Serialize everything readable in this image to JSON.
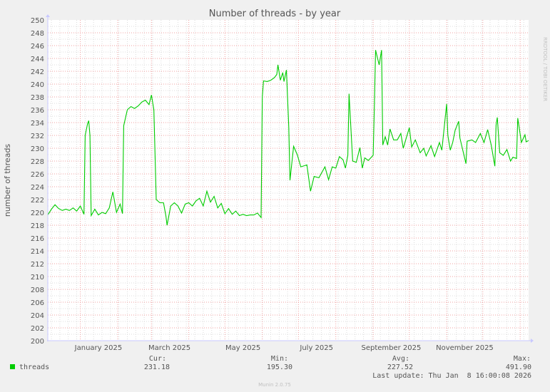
{
  "chart_data": {
    "type": "line",
    "title": "Number of threads - by year",
    "ylabel": "number of threads",
    "xlabel": "",
    "ylim": [
      200,
      250
    ],
    "y_ticks": [
      "200",
      "202",
      "204",
      "206",
      "208",
      "210",
      "212",
      "214",
      "216",
      "218",
      "220",
      "222",
      "224",
      "226",
      "228",
      "230",
      "232",
      "234",
      "236",
      "238",
      "240",
      "242",
      "244",
      "246",
      "248",
      "250"
    ],
    "xlim": [
      "2024-12-05",
      "2026-01-08"
    ],
    "x_ticks": [
      {
        "label": "January 2025",
        "date": "2025-01-16"
      },
      {
        "label": "March 2025",
        "date": "2025-03-16"
      },
      {
        "label": "May 2025",
        "date": "2025-05-16"
      },
      {
        "label": "July 2025",
        "date": "2025-07-16"
      },
      {
        "label": "September 2025",
        "date": "2025-09-16"
      },
      {
        "label": "November 2025",
        "date": "2025-11-16"
      }
    ],
    "month_lines": [
      "2025-01-01",
      "2025-02-01",
      "2025-03-01",
      "2025-04-01",
      "2025-05-01",
      "2025-06-01",
      "2025-07-01",
      "2025-08-01",
      "2025-09-01",
      "2025-10-01",
      "2025-11-01",
      "2025-12-01",
      "2026-01-01"
    ],
    "grid": true,
    "series": [
      {
        "name": "threads",
        "color": "#00cc00",
        "points": [
          [
            "2024-12-05",
            219.6
          ],
          [
            "2024-12-08",
            220.5
          ],
          [
            "2024-12-11",
            221.2
          ],
          [
            "2024-12-14",
            220.6
          ],
          [
            "2024-12-17",
            220.3
          ],
          [
            "2024-12-20",
            220.5
          ],
          [
            "2024-12-23",
            220.3
          ],
          [
            "2024-12-26",
            220.7
          ],
          [
            "2024-12-29",
            220.2
          ],
          [
            "2025-01-01",
            221.0
          ],
          [
            "2025-01-04",
            219.7
          ],
          [
            "2025-01-05",
            232.0
          ],
          [
            "2025-01-07",
            233.8
          ],
          [
            "2025-01-08",
            234.3
          ],
          [
            "2025-01-09",
            232.0
          ],
          [
            "2025-01-10",
            219.5
          ],
          [
            "2025-01-13",
            220.5
          ],
          [
            "2025-01-16",
            219.6
          ],
          [
            "2025-01-19",
            220.0
          ],
          [
            "2025-01-22",
            219.8
          ],
          [
            "2025-01-25",
            220.7
          ],
          [
            "2025-01-28",
            223.2
          ],
          [
            "2025-01-31",
            220.0
          ],
          [
            "2025-02-03",
            221.3
          ],
          [
            "2025-02-05",
            219.8
          ],
          [
            "2025-02-06",
            233.5
          ],
          [
            "2025-02-09",
            236.0
          ],
          [
            "2025-02-12",
            236.5
          ],
          [
            "2025-02-15",
            236.2
          ],
          [
            "2025-02-18",
            236.6
          ],
          [
            "2025-02-21",
            237.2
          ],
          [
            "2025-02-24",
            237.5
          ],
          [
            "2025-02-27",
            236.8
          ],
          [
            "2025-03-01",
            238.3
          ],
          [
            "2025-03-03",
            236.0
          ],
          [
            "2025-03-05",
            222.0
          ],
          [
            "2025-03-08",
            221.5
          ],
          [
            "2025-03-11",
            221.5
          ],
          [
            "2025-03-13",
            219.5
          ],
          [
            "2025-03-14",
            218.0
          ],
          [
            "2025-03-17",
            221.0
          ],
          [
            "2025-03-20",
            221.5
          ],
          [
            "2025-03-23",
            221.0
          ],
          [
            "2025-03-26",
            219.9
          ],
          [
            "2025-03-29",
            221.3
          ],
          [
            "2025-04-01",
            221.5
          ],
          [
            "2025-04-04",
            221.0
          ],
          [
            "2025-04-07",
            221.8
          ],
          [
            "2025-04-10",
            222.2
          ],
          [
            "2025-04-13",
            221.0
          ],
          [
            "2025-04-16",
            223.3
          ],
          [
            "2025-04-19",
            221.6
          ],
          [
            "2025-04-22",
            222.5
          ],
          [
            "2025-04-25",
            220.7
          ],
          [
            "2025-04-28",
            221.4
          ],
          [
            "2025-05-01",
            219.8
          ],
          [
            "2025-05-04",
            220.6
          ],
          [
            "2025-05-07",
            219.7
          ],
          [
            "2025-05-10",
            220.2
          ],
          [
            "2025-05-13",
            219.5
          ],
          [
            "2025-05-16",
            219.7
          ],
          [
            "2025-05-19",
            219.5
          ],
          [
            "2025-05-22",
            219.6
          ],
          [
            "2025-05-25",
            219.6
          ],
          [
            "2025-05-28",
            219.9
          ],
          [
            "2025-05-31",
            219.2
          ],
          [
            "2025-06-01",
            238.0
          ],
          [
            "2025-06-02",
            240.5
          ],
          [
            "2025-06-05",
            240.4
          ],
          [
            "2025-06-08",
            240.6
          ],
          [
            "2025-06-11",
            241.0
          ],
          [
            "2025-06-13",
            241.5
          ],
          [
            "2025-06-14",
            243.0
          ],
          [
            "2025-06-16",
            240.6
          ],
          [
            "2025-06-18",
            241.8
          ],
          [
            "2025-06-19",
            240.4
          ],
          [
            "2025-06-21",
            242.2
          ],
          [
            "2025-06-23",
            233.3
          ],
          [
            "2025-06-24",
            225.0
          ],
          [
            "2025-06-27",
            230.3
          ],
          [
            "2025-06-30",
            229.0
          ],
          [
            "2025-07-03",
            227.1
          ],
          [
            "2025-07-08",
            227.4
          ],
          [
            "2025-07-11",
            223.3
          ],
          [
            "2025-07-14",
            225.6
          ],
          [
            "2025-07-18",
            225.4
          ],
          [
            "2025-07-23",
            227.1
          ],
          [
            "2025-07-26",
            225.1
          ],
          [
            "2025-07-29",
            227.1
          ],
          [
            "2025-08-01",
            226.9
          ],
          [
            "2025-08-04",
            228.7
          ],
          [
            "2025-08-07",
            228.2
          ],
          [
            "2025-08-09",
            226.9
          ],
          [
            "2025-08-11",
            228.9
          ],
          [
            "2025-08-12",
            238.5
          ],
          [
            "2025-08-15",
            228.0
          ],
          [
            "2025-08-18",
            227.8
          ],
          [
            "2025-08-21",
            230.1
          ],
          [
            "2025-08-23",
            226.9
          ],
          [
            "2025-08-25",
            228.5
          ],
          [
            "2025-08-28",
            228.1
          ],
          [
            "2025-09-01",
            228.9
          ],
          [
            "2025-09-02",
            236.6
          ],
          [
            "2025-09-03",
            245.3
          ],
          [
            "2025-09-06",
            243.0
          ],
          [
            "2025-09-08",
            245.3
          ],
          [
            "2025-09-09",
            230.5
          ],
          [
            "2025-09-11",
            231.8
          ],
          [
            "2025-09-13",
            230.5
          ],
          [
            "2025-09-15",
            233.0
          ],
          [
            "2025-09-18",
            231.3
          ],
          [
            "2025-09-21",
            231.3
          ],
          [
            "2025-09-24",
            232.3
          ],
          [
            "2025-09-26",
            230.0
          ],
          [
            "2025-09-28",
            231.3
          ],
          [
            "2025-10-01",
            233.2
          ],
          [
            "2025-10-03",
            230.2
          ],
          [
            "2025-10-06",
            231.3
          ],
          [
            "2025-10-10",
            229.3
          ],
          [
            "2025-10-13",
            230.0
          ],
          [
            "2025-10-15",
            228.8
          ],
          [
            "2025-10-19",
            230.4
          ],
          [
            "2025-10-22",
            228.7
          ],
          [
            "2025-10-26",
            230.9
          ],
          [
            "2025-10-28",
            229.7
          ],
          [
            "2025-11-01",
            236.9
          ],
          [
            "2025-11-02",
            232.0
          ],
          [
            "2025-11-04",
            229.7
          ],
          [
            "2025-11-06",
            230.9
          ],
          [
            "2025-11-08",
            232.8
          ],
          [
            "2025-11-11",
            234.2
          ],
          [
            "2025-11-12",
            231.6
          ],
          [
            "2025-11-17",
            227.6
          ],
          [
            "2025-11-18",
            231.1
          ],
          [
            "2025-11-22",
            231.3
          ],
          [
            "2025-11-25",
            230.9
          ],
          [
            "2025-11-29",
            232.3
          ],
          [
            "2025-12-02",
            230.9
          ],
          [
            "2025-12-05",
            232.9
          ],
          [
            "2025-12-08",
            230.5
          ],
          [
            "2025-12-11",
            227.2
          ],
          [
            "2025-12-12",
            233.6
          ],
          [
            "2025-12-13",
            234.8
          ],
          [
            "2025-12-15",
            229.3
          ],
          [
            "2025-12-18",
            228.9
          ],
          [
            "2025-12-21",
            229.8
          ],
          [
            "2025-12-24",
            228.0
          ],
          [
            "2025-12-26",
            228.6
          ],
          [
            "2025-12-29",
            228.4
          ],
          [
            "2025-12-30",
            234.7
          ],
          [
            "2026-01-02",
            230.9
          ],
          [
            "2026-01-05",
            232.1
          ],
          [
            "2026-01-06",
            231.0
          ],
          [
            "2026-01-08",
            231.2
          ]
        ]
      }
    ]
  },
  "legend": {
    "series_name": "threads",
    "color": "#00cc00",
    "cur_label": "Cur:",
    "cur": "231.18",
    "min_label": "Min:",
    "min": "195.30",
    "avg_label": "Avg:",
    "avg": "227.52",
    "max_label": "Max:",
    "max": "491.90",
    "last_update": "Last update: Thu Jan  8 16:00:08 2026"
  },
  "watermark": "RRDTOOL / TOBI OETIKER",
  "footer": "Munin 2.0.75"
}
